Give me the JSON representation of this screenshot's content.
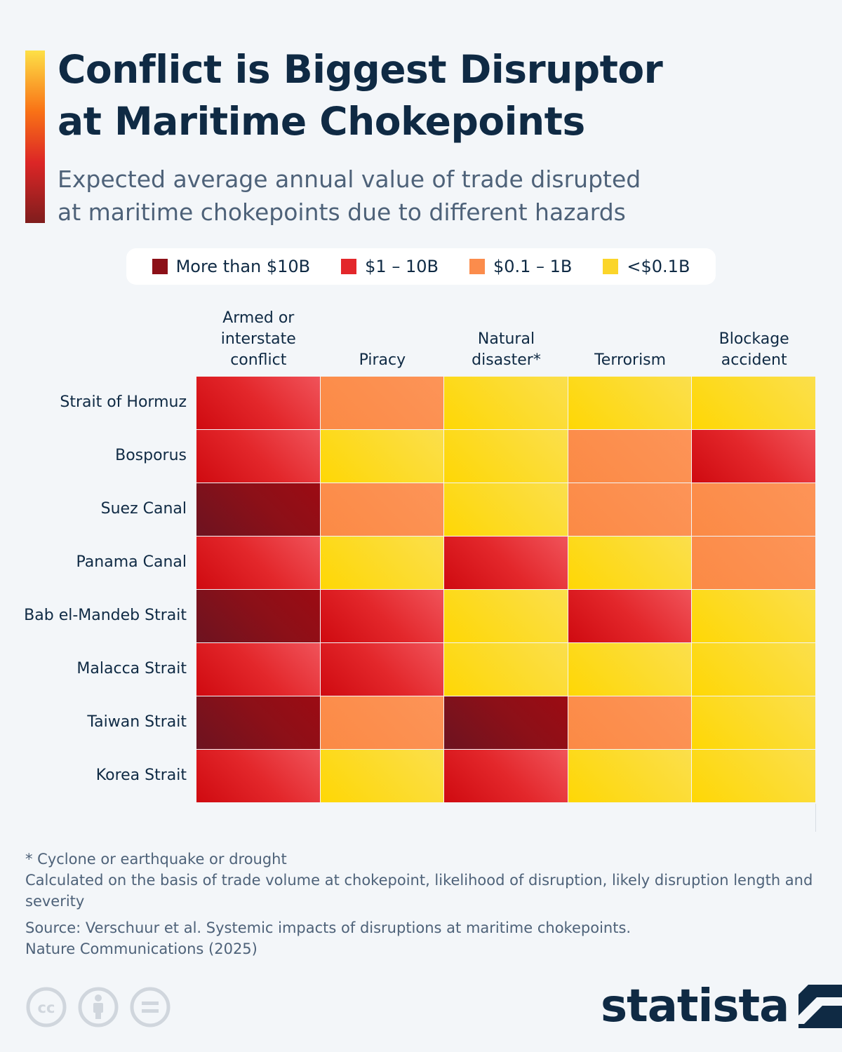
{
  "header": {
    "title_line1": "Conflict is Biggest Disruptor",
    "title_line2": "at Maritime Chokepoints",
    "subtitle_line1": "Expected average annual value of trade disrupted",
    "subtitle_line2": "at maritime chokepoints due to different hazards"
  },
  "legend": [
    {
      "label": "More than $10B",
      "color": "#8c1018"
    },
    {
      "label": "$1 – 10B",
      "color": "#e3272b"
    },
    {
      "label": "$0.1 – 1B",
      "color": "#fb8c4c"
    },
    {
      "label": "<$0.1B",
      "color": "#fbd52a"
    }
  ],
  "chart_data": {
    "type": "heatmap",
    "columns": [
      {
        "lines": [
          "Armed or",
          "interstate",
          "conflict"
        ]
      },
      {
        "lines": [
          "Piracy"
        ]
      },
      {
        "lines": [
          "Natural",
          "disaster*"
        ]
      },
      {
        "lines": [
          "Terrorism"
        ]
      },
      {
        "lines": [
          "Blockage",
          "accident"
        ]
      }
    ],
    "rows": [
      "Strait of Hormuz",
      "Bosporus",
      "Suez Canal",
      "Panama Canal",
      "Bab el-Mandeb Strait",
      "Malacca Strait",
      "Taiwan Strait",
      "Korea Strait"
    ],
    "categories": [
      "More than $10B",
      "$1 – 10B",
      "$0.1 – 1B",
      "<$0.1B"
    ],
    "values": [
      [
        "$1 – 10B",
        "$0.1 – 1B",
        "<$0.1B",
        "<$0.1B",
        "<$0.1B"
      ],
      [
        "$1 – 10B",
        "<$0.1B",
        "<$0.1B",
        "$0.1 – 1B",
        "$1 – 10B"
      ],
      [
        "More than $10B",
        "$0.1 – 1B",
        "<$0.1B",
        "$0.1 – 1B",
        "$0.1 – 1B"
      ],
      [
        "$1 – 10B",
        "<$0.1B",
        "$1 – 10B",
        "<$0.1B",
        "$0.1 – 1B"
      ],
      [
        "More than $10B",
        "$1 – 10B",
        "<$0.1B",
        "$1 – 10B",
        "<$0.1B"
      ],
      [
        "$1 – 10B",
        "$1 – 10B",
        "<$0.1B",
        "<$0.1B",
        "<$0.1B"
      ],
      [
        "More than $10B",
        "$0.1 – 1B",
        "More than $10B",
        "$0.1 – 1B",
        "<$0.1B"
      ],
      [
        "$1 – 10B",
        "<$0.1B",
        "$1 – 10B",
        "<$0.1B",
        "<$0.1B"
      ]
    ]
  },
  "footer": {
    "note1": "* Cyclone or earthquake or drought",
    "note2": "Calculated on the basis of trade volume at chokepoint, likelihood of disruption, likely disruption length and severity",
    "source_line1": "Source: Verschuur et al. Systemic impacts of disruptions at maritime chokepoints.",
    "source_line2": "Nature Communications (2025)",
    "brand": "statista",
    "license_icons": [
      "cc-icon",
      "attribution-icon",
      "no-derivatives-icon"
    ]
  }
}
